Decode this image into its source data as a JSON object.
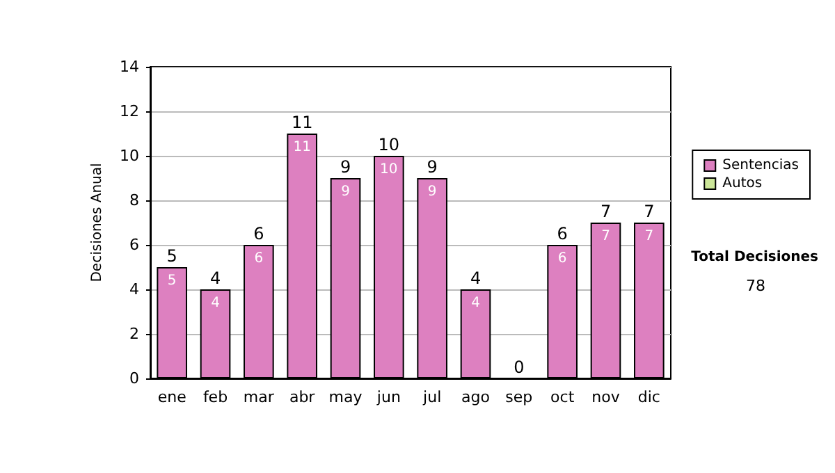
{
  "chart_data": {
    "type": "bar",
    "stacked": true,
    "ylabel": "Decisiones Anual",
    "categories": [
      "ene",
      "feb",
      "mar",
      "abr",
      "may",
      "jun",
      "jul",
      "ago",
      "sep",
      "oct",
      "nov",
      "dic"
    ],
    "series": [
      {
        "name": "Sentencias",
        "color": "#dd80c0",
        "values": [
          5,
          4,
          6,
          11,
          9,
          10,
          9,
          4,
          0,
          6,
          7,
          7
        ],
        "value_labels": [
          "5",
          "4",
          "6",
          "11",
          "9",
          "10",
          "9",
          "4",
          null,
          "6",
          "7",
          "7"
        ]
      },
      {
        "name": "Autos",
        "color": "#cce699",
        "values": [
          0,
          0,
          0,
          0,
          0,
          0,
          0,
          0,
          0,
          0,
          0,
          0
        ]
      }
    ],
    "totals": [
      "5",
      "4",
      "6",
      "11",
      "9",
      "10",
      "9",
      "4",
      "0",
      "6",
      "7",
      "7"
    ],
    "ylim": [
      0,
      14
    ],
    "yticks": [
      0,
      2,
      4,
      6,
      8,
      10,
      12,
      14
    ],
    "grid": "y",
    "legend": "right",
    "annotations": [
      "Total Decisiones",
      "78"
    ]
  }
}
